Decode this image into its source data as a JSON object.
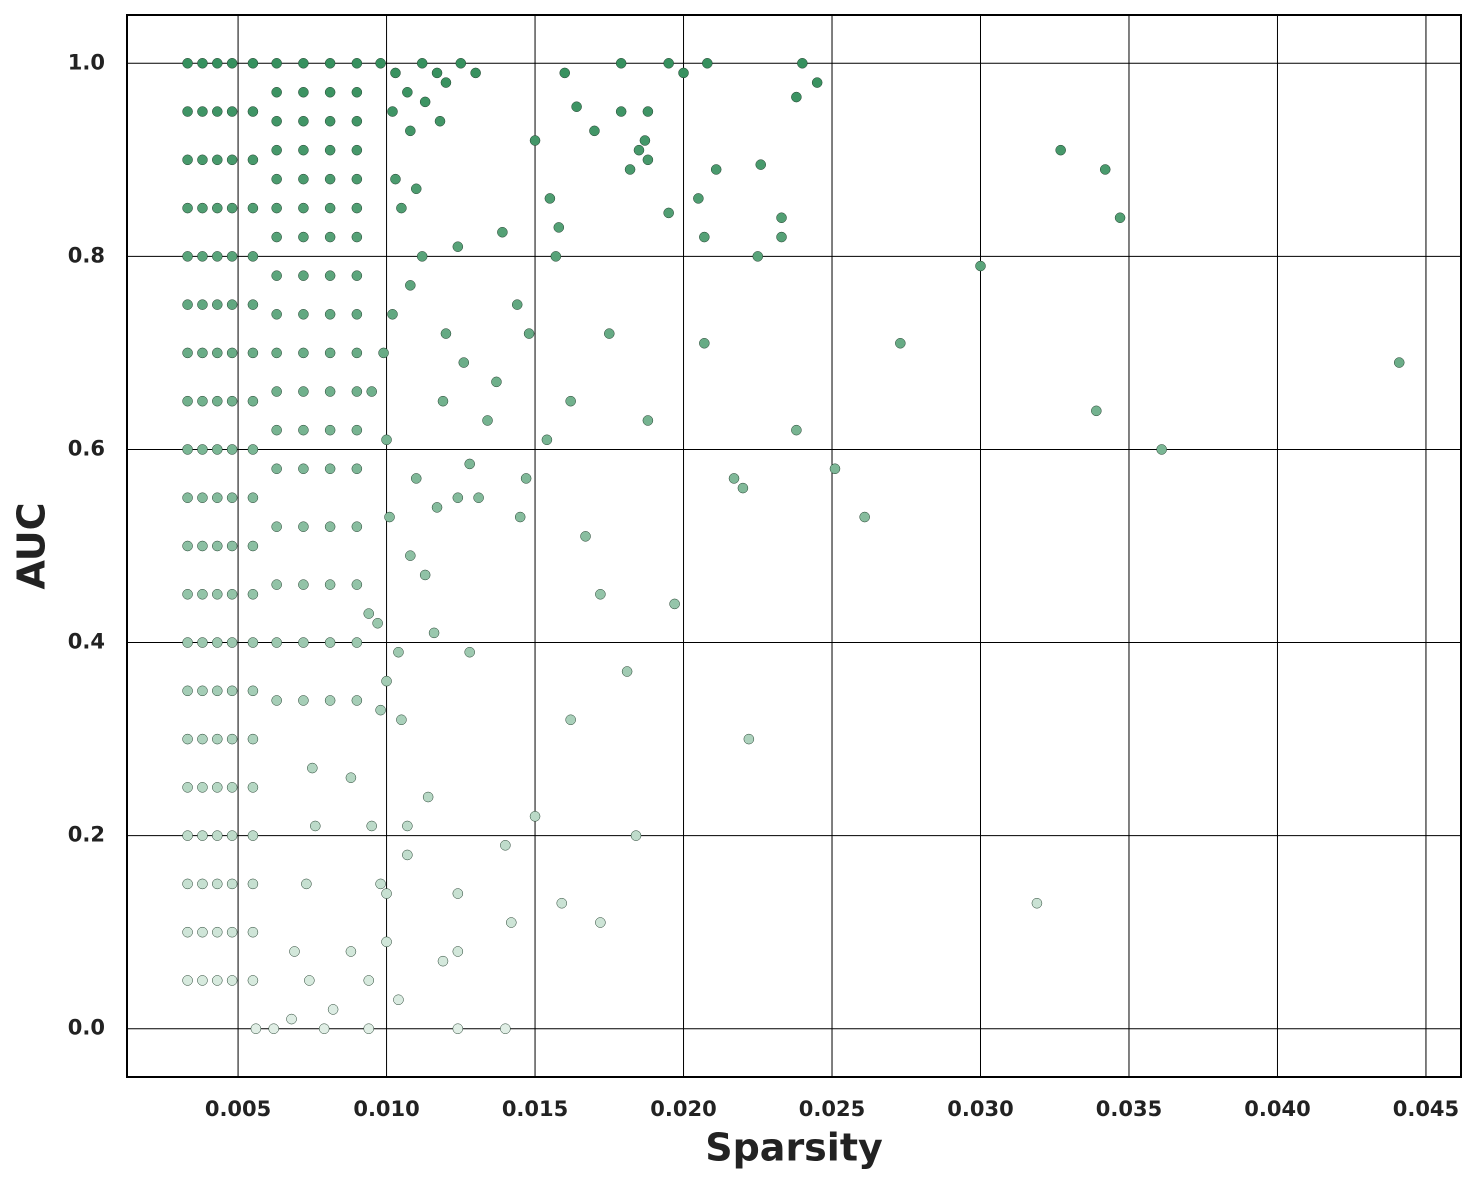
{
  "chart_data": {
    "type": "scatter",
    "xlabel": "Sparsity",
    "ylabel": "AUC",
    "xlim": [
      0.00126,
      0.04618
    ],
    "ylim": [
      -0.05,
      1.05
    ],
    "xticks": [
      0.005,
      {
        "value": 0.01,
        "label": "0.010"
      },
      0.015,
      {
        "value": 0.02,
        "label": "0.020"
      },
      0.025,
      {
        "value": 0.03,
        "label": "0.030"
      },
      0.035,
      {
        "value": 0.04,
        "label": "0.040"
      },
      0.045
    ],
    "yticks": [
      {
        "value": 0,
        "label": "0.0"
      },
      0.2,
      0.4,
      0.6,
      0.8,
      {
        "value": 1,
        "label": "1.0"
      }
    ],
    "grid": true,
    "colors": [
      "#e8f3ec",
      "#2e8b57"
    ],
    "series": [
      {
        "name": "points",
        "x": [
          0.0033,
          0.0033,
          0.0033,
          0.0033,
          0.0033,
          0.0033,
          0.0033,
          0.0033,
          0.0033,
          0.0033,
          0.0033,
          0.0033,
          0.0033,
          0.0033,
          0.0033,
          0.0033,
          0.0033,
          0.0033,
          0.0033,
          0.0033,
          0.0038,
          0.0038,
          0.0038,
          0.0038,
          0.0038,
          0.0038,
          0.0038,
          0.0038,
          0.0038,
          0.0038,
          0.0038,
          0.0038,
          0.0038,
          0.0038,
          0.0038,
          0.0038,
          0.0038,
          0.0038,
          0.0038,
          0.0038,
          0.0043,
          0.0043,
          0.0043,
          0.0043,
          0.0043,
          0.0043,
          0.0043,
          0.0043,
          0.0043,
          0.0043,
          0.0043,
          0.0043,
          0.0043,
          0.0043,
          0.0043,
          0.0043,
          0.0043,
          0.0043,
          0.0043,
          0.0043,
          0.0048,
          0.0048,
          0.0048,
          0.0048,
          0.0048,
          0.0048,
          0.0048,
          0.0048,
          0.0048,
          0.0048,
          0.0048,
          0.0048,
          0.0048,
          0.0048,
          0.0048,
          0.0048,
          0.0048,
          0.0048,
          0.0048,
          0.0048,
          0.0055,
          0.0055,
          0.0055,
          0.0055,
          0.0055,
          0.0055,
          0.0055,
          0.0055,
          0.0055,
          0.0055,
          0.0055,
          0.0055,
          0.0055,
          0.0055,
          0.0055,
          0.0055,
          0.0055,
          0.0055,
          0.0055,
          0.0055,
          0.0063,
          0.0063,
          0.0063,
          0.0063,
          0.0063,
          0.0063,
          0.0063,
          0.0063,
          0.0063,
          0.0063,
          0.0063,
          0.0063,
          0.0063,
          0.0063,
          0.0063,
          0.0063,
          0.0063,
          0.0072,
          0.0072,
          0.0072,
          0.0072,
          0.0072,
          0.0072,
          0.0072,
          0.0072,
          0.0072,
          0.0072,
          0.0072,
          0.0072,
          0.0072,
          0.0072,
          0.0072,
          0.0072,
          0.0072,
          0.0081,
          0.0081,
          0.0081,
          0.0081,
          0.0081,
          0.0081,
          0.0081,
          0.0081,
          0.0081,
          0.0081,
          0.0081,
          0.0081,
          0.0081,
          0.0081,
          0.0081,
          0.0081,
          0.0081,
          0.009,
          0.009,
          0.009,
          0.009,
          0.009,
          0.009,
          0.009,
          0.009,
          0.009,
          0.009,
          0.009,
          0.009,
          0.009,
          0.009,
          0.009,
          0.009,
          0.009,
          0.0098,
          0.0103,
          0.0107,
          0.0112,
          0.0117,
          0.012,
          0.0125,
          0.013,
          0.0102,
          0.0108,
          0.0113,
          0.0118,
          0.0103,
          0.011,
          0.0105,
          0.0108,
          0.0102,
          0.0099,
          0.0095,
          0.01,
          0.0441,
          0.0361,
          0.0347,
          0.0342,
          0.0339,
          0.0327,
          0.0319,
          0.03,
          0.0273,
          0.0261,
          0.0251,
          0.0245,
          0.024,
          0.0238,
          0.0238,
          0.0233,
          0.0233,
          0.0226,
          0.0225,
          0.0222,
          0.022,
          0.0217,
          0.0211,
          0.0208,
          0.0207,
          0.0207,
          0.0205,
          0.02,
          0.0197,
          0.0195,
          0.0195,
          0.0188,
          0.0188,
          0.0188,
          0.0187,
          0.0185,
          0.0184,
          0.0182,
          0.0181,
          0.0179,
          0.0179,
          0.0175,
          0.0172,
          0.0172,
          0.017,
          0.0167,
          0.0164,
          0.0162,
          0.0162,
          0.016,
          0.0159,
          0.0158,
          0.0157,
          0.0155,
          0.0154,
          0.015,
          0.015,
          0.0148,
          0.0147,
          0.0145,
          0.0144,
          0.0142,
          0.014,
          0.014,
          0.0139,
          0.0137,
          0.0134,
          0.0131,
          0.0128,
          0.0128,
          0.0126,
          0.0124,
          0.0124,
          0.0124,
          0.0124,
          0.0124,
          0.012,
          0.0119,
          0.0119,
          0.0117,
          0.0116,
          0.0114,
          0.0113,
          0.0112,
          0.011,
          0.0108,
          0.0107,
          0.0107,
          0.0105,
          0.0104,
          0.0104,
          0.0101,
          0.01,
          0.01,
          0.01,
          0.0098,
          0.0098,
          0.0097,
          0.0094,
          0.0094,
          0.0094,
          0.0095,
          0.0088,
          0.0088,
          0.0082,
          0.0079,
          0.0076,
          0.0075,
          0.0074,
          0.0073,
          0.0069,
          0.0068,
          0.0062,
          0.0056
        ],
        "values": [
          1,
          0.95,
          0.9,
          0.85,
          0.8,
          0.75,
          0.7,
          0.65,
          0.6,
          0.55,
          0.5,
          0.45,
          0.4,
          0.35,
          0.3,
          0.25,
          0.2,
          0.15,
          0.1,
          0.05,
          1,
          0.95,
          0.9,
          0.85,
          0.8,
          0.75,
          0.7,
          0.65,
          0.6,
          0.55,
          0.5,
          0.45,
          0.4,
          0.35,
          0.3,
          0.25,
          0.2,
          0.15,
          0.1,
          0.05,
          1,
          0.95,
          0.9,
          0.85,
          0.8,
          0.75,
          0.7,
          0.65,
          0.6,
          0.55,
          0.5,
          0.45,
          0.4,
          0.35,
          0.3,
          0.25,
          0.2,
          0.15,
          0.1,
          0.05,
          1,
          0.95,
          0.9,
          0.85,
          0.8,
          0.75,
          0.7,
          0.65,
          0.6,
          0.55,
          0.5,
          0.45,
          0.4,
          0.35,
          0.3,
          0.25,
          0.2,
          0.15,
          0.1,
          0.05,
          1,
          0.95,
          0.9,
          0.85,
          0.8,
          0.75,
          0.7,
          0.65,
          0.6,
          0.55,
          0.5,
          0.45,
          0.4,
          0.35,
          0.3,
          0.25,
          0.2,
          0.15,
          0.1,
          0.05,
          1,
          0.97,
          0.94,
          0.91,
          0.88,
          0.85,
          0.82,
          0.78,
          0.74,
          0.7,
          0.66,
          0.62,
          0.58,
          0.52,
          0.46,
          0.4,
          0.34,
          1,
          0.97,
          0.94,
          0.91,
          0.88,
          0.85,
          0.82,
          0.78,
          0.74,
          0.7,
          0.66,
          0.62,
          0.58,
          0.52,
          0.46,
          0.4,
          0.34,
          1,
          0.97,
          0.94,
          0.91,
          0.88,
          0.85,
          0.82,
          0.78,
          0.74,
          0.7,
          0.66,
          0.62,
          0.58,
          0.52,
          0.46,
          0.4,
          0.34,
          1,
          0.97,
          0.94,
          0.91,
          0.88,
          0.85,
          0.82,
          0.78,
          0.74,
          0.7,
          0.66,
          0.62,
          0.58,
          0.52,
          0.46,
          0.4,
          0.34,
          1,
          0.99,
          0.97,
          1,
          0.99,
          0.98,
          1,
          0.99,
          0.95,
          0.93,
          0.96,
          0.94,
          0.88,
          0.87,
          0.85,
          0.77,
          0.74,
          0.7,
          0.66,
          0.61,
          0.69,
          0.6,
          0.84,
          0.89,
          0.64,
          0.91,
          0.13,
          0.79,
          0.71,
          0.53,
          0.58,
          0.98,
          1,
          0.965,
          0.62,
          0.84,
          0.82,
          0.895,
          0.8,
          0.3,
          0.56,
          0.57,
          0.89,
          1,
          0.82,
          0.71,
          0.86,
          0.99,
          0.44,
          0.845,
          1,
          0.95,
          0.9,
          0.63,
          0.92,
          0.91,
          0.2,
          0.89,
          0.37,
          0.95,
          1,
          0.72,
          0.45,
          0.11,
          0.93,
          0.51,
          0.955,
          0.65,
          0.32,
          0.99,
          0.13,
          0.83,
          0.8,
          0.86,
          0.61,
          0.92,
          0.22,
          0.72,
          0.57,
          0.53,
          0.75,
          0.11,
          0.19,
          0,
          0.825,
          0.67,
          0.63,
          0.55,
          0.585,
          0.39,
          0.69,
          0.81,
          0.55,
          0.14,
          0.08,
          0,
          0.72,
          0.65,
          0.07,
          0.54,
          0.41,
          0.24,
          0.47,
          0.8,
          0.57,
          0.49,
          0.21,
          0.18,
          0.32,
          0.39,
          0.03,
          0.53,
          0.36,
          0.14,
          0.09,
          0.33,
          0.15,
          0.42,
          0.43,
          0.05,
          0,
          0.21,
          0.26,
          0.08,
          0.02,
          0,
          0.21,
          0.27,
          0.05,
          0.15,
          0.08,
          0.01,
          0,
          0
        ]
      }
    ]
  }
}
